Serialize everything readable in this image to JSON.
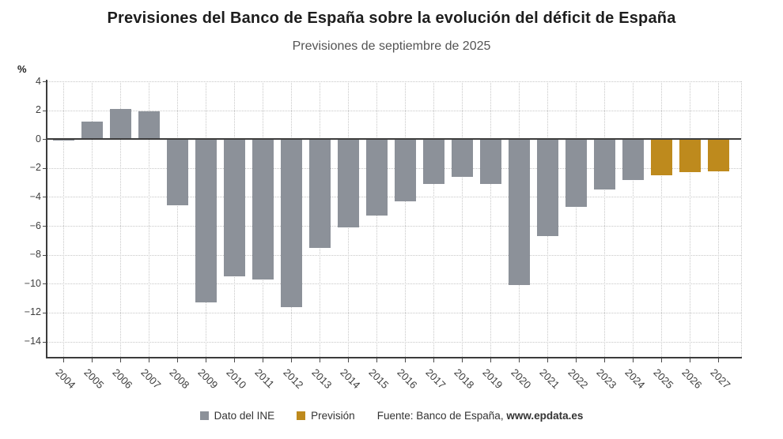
{
  "chart_data": {
    "type": "bar",
    "title": "Previsiones del Banco de España sobre la evolución del déficit de España",
    "subtitle": "Previsiones de septiembre de 2025",
    "unit_label": "%",
    "xlabel": "",
    "ylabel": "%",
    "categories": [
      "2004",
      "2005",
      "2006",
      "2007",
      "2008",
      "2009",
      "2010",
      "2011",
      "2012",
      "2013",
      "2014",
      "2015",
      "2016",
      "2017",
      "2018",
      "2019",
      "2020",
      "2021",
      "2022",
      "2023",
      "2024",
      "2025",
      "2026",
      "2027"
    ],
    "series": [
      {
        "name": "Dato del INE",
        "color": "#8c9199",
        "values": [
          -0.1,
          1.2,
          2.1,
          1.9,
          -4.6,
          -11.3,
          -9.5,
          -9.7,
          -11.6,
          -7.5,
          -6.1,
          -5.3,
          -4.3,
          -3.1,
          -2.6,
          -3.1,
          -10.1,
          -6.7,
          -4.7,
          -3.5,
          -2.8,
          null,
          null,
          null
        ]
      },
      {
        "name": "Previsión",
        "color": "#be8a1d",
        "values": [
          null,
          null,
          null,
          null,
          null,
          null,
          null,
          null,
          null,
          null,
          null,
          null,
          null,
          null,
          null,
          null,
          null,
          null,
          null,
          null,
          null,
          -2.5,
          -2.3,
          -2.2
        ]
      }
    ],
    "yticks": [
      4,
      2,
      0,
      -2,
      -4,
      -6,
      -8,
      -10,
      -12,
      -14
    ],
    "ytick_labels": [
      "4",
      "2",
      "0",
      "−2",
      "−4",
      "−6",
      "−8",
      "−10",
      "−12",
      "−14"
    ],
    "ylim": [
      -15.06,
      4
    ],
    "grid": true,
    "legend_position": "bottom"
  },
  "source": {
    "prefix": "Fuente: Banco de España, ",
    "link": "www.epdata.es"
  }
}
